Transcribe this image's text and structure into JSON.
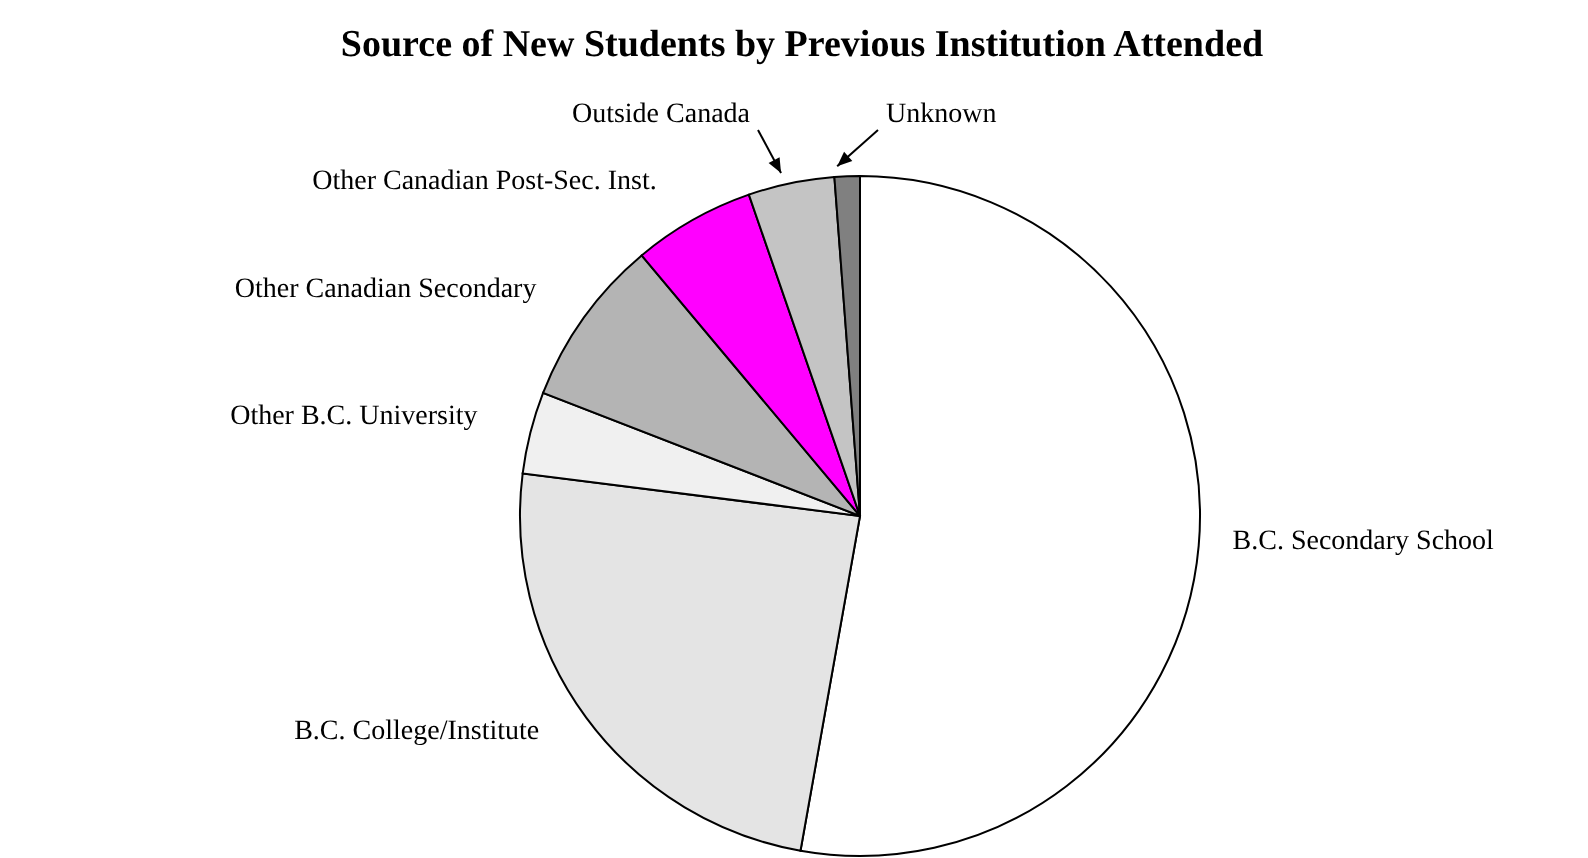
{
  "chart_data": {
    "type": "pie",
    "title": "Source of New Students by Previous Institution Attended",
    "categories": [
      "B.C. Secondary School",
      "B.C. College/Institute",
      "Other B.C. University",
      "Other Canadian Secondary",
      "Other Canadian Post-Sec. Inst.",
      "Outside Canada",
      "Unknown"
    ],
    "values": [
      52.8,
      24.2,
      3.9,
      8,
      5.8,
      4.1,
      1.2
    ],
    "colors": [
      "#ffffff",
      "#e4e4e4",
      "#f0f0f0",
      "#b4b4b4",
      "#ff00ff",
      "#c4c4c4",
      "#808080"
    ]
  }
}
